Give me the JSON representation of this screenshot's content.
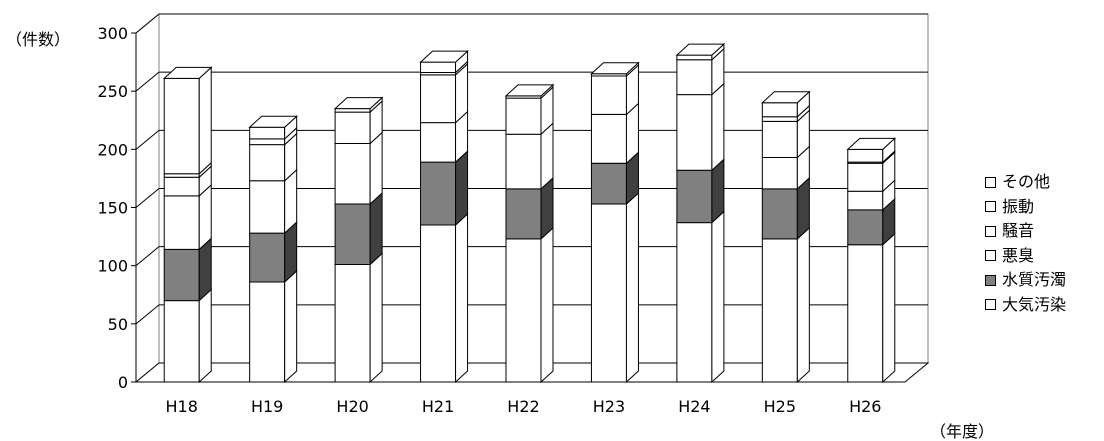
{
  "chart_data": {
    "type": "bar",
    "stacked": true,
    "three_d": true,
    "y_unit_label": "（件数）",
    "x_unit_label": "（年度）",
    "ylim": [
      0,
      300
    ],
    "y_ticks": [
      0,
      50,
      100,
      150,
      200,
      250,
      300
    ],
    "grid": true,
    "legend_position": "right",
    "categories": [
      "H18",
      "H19",
      "H20",
      "H21",
      "H22",
      "H23",
      "H24",
      "H25",
      "H26"
    ],
    "series": [
      {
        "name": "大気汚染",
        "color": "#ffffff",
        "values": [
          70,
          86,
          101,
          135,
          123,
          153,
          137,
          123,
          118
        ]
      },
      {
        "name": "水質汚濁",
        "color": "#808080",
        "values": [
          44,
          42,
          52,
          54,
          43,
          35,
          45,
          43,
          30
        ]
      },
      {
        "name": "悪臭",
        "color": "#ffffff",
        "values": [
          46,
          45,
          52,
          34,
          47,
          42,
          65,
          27,
          16
        ]
      },
      {
        "name": "騒音",
        "color": "#ffffff",
        "values": [
          16,
          31,
          27,
          41,
          31,
          33,
          30,
          31,
          24
        ]
      },
      {
        "name": "振動",
        "color": "#ffffff",
        "values": [
          3,
          5,
          0,
          2,
          2,
          2,
          0,
          4,
          1
        ]
      },
      {
        "name": "その他",
        "color": "#ffffff",
        "values": [
          82,
          10,
          3,
          9,
          0,
          0,
          4,
          12,
          11
        ]
      }
    ],
    "legend_order": [
      "その他",
      "振動",
      "騒音",
      "悪臭",
      "水質汚濁",
      "大気汚染"
    ]
  }
}
